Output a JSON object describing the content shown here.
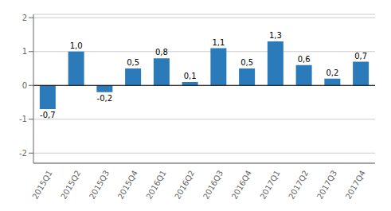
{
  "chart_data": {
    "type": "bar",
    "categories": [
      "2015Q1",
      "2015Q2",
      "2015Q3",
      "2015Q4",
      "2016Q1",
      "2016Q2",
      "2016Q3",
      "2016Q4",
      "2017Q1",
      "2017Q2",
      "2017Q3",
      "2017Q4"
    ],
    "values": [
      -0.7,
      1.0,
      -0.2,
      0.5,
      0.8,
      0.1,
      1.1,
      0.5,
      1.3,
      0.6,
      0.2,
      0.7
    ],
    "value_labels": [
      "-0,7",
      "1,0",
      "-0,2",
      "0,5",
      "0,8",
      "0,1",
      "1,1",
      "0,5",
      "1,3",
      "0,6",
      "0,2",
      "0,7"
    ],
    "data_labels": true,
    "color": "#2b7bba",
    "ylim": [
      -2.3,
      2.1
    ],
    "yticks": [
      -2,
      -1,
      0,
      1,
      2
    ],
    "grid": true
  }
}
